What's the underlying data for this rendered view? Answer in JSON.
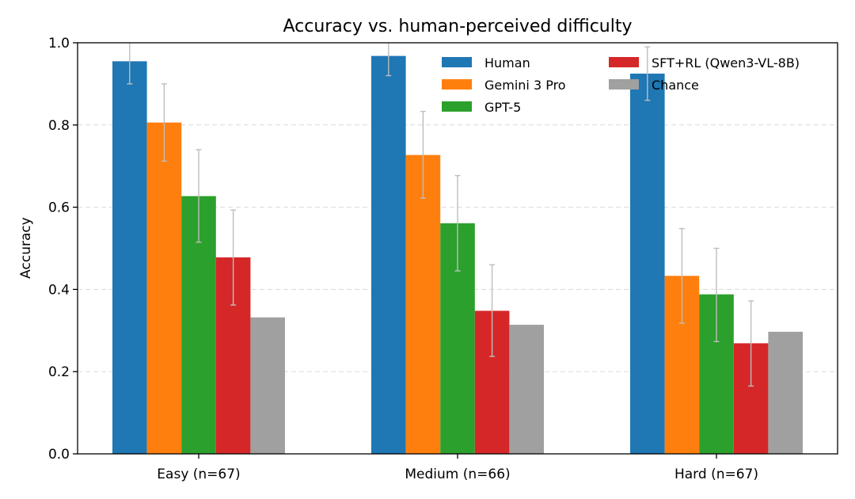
{
  "chart_data": {
    "type": "bar",
    "title": "Accuracy vs. human-perceived difficulty",
    "xlabel": "",
    "ylabel": "Accuracy",
    "categories": [
      "Easy (n=67)",
      "Medium (n=66)",
      "Hard (n=67)"
    ],
    "ylim": [
      0,
      1.0
    ],
    "yticks": [
      0.0,
      0.2,
      0.4,
      0.6,
      0.8,
      1.0
    ],
    "ytick_labels": [
      "0.0",
      "0.2",
      "0.4",
      "0.6",
      "0.8",
      "1.0"
    ],
    "grid": "y-dashed",
    "legend_position": "top-right",
    "legend_columns": 2,
    "series": [
      {
        "name": "Human",
        "color": "#1f77b4",
        "values": [
          0.955,
          0.968,
          0.925
        ],
        "err_low": [
          0.9,
          0.92,
          0.86
        ],
        "err_high": [
          1.01,
          1.016,
          0.99
        ]
      },
      {
        "name": "Gemini 3 Pro",
        "color": "#ff7f0e",
        "values": [
          0.806,
          0.727,
          0.433
        ],
        "err_low": [
          0.712,
          0.622,
          0.318
        ],
        "err_high": [
          0.9,
          0.833,
          0.548
        ]
      },
      {
        "name": "GPT-5",
        "color": "#2ca02c",
        "values": [
          0.627,
          0.561,
          0.388
        ],
        "err_low": [
          0.515,
          0.445,
          0.273
        ],
        "err_high": [
          0.74,
          0.677,
          0.5
        ]
      },
      {
        "name": "SFT+RL (Qwen3-VL-8B)",
        "color": "#d62728",
        "values": [
          0.478,
          0.348,
          0.269
        ],
        "err_low": [
          0.362,
          0.237,
          0.165
        ],
        "err_high": [
          0.593,
          0.46,
          0.372
        ]
      },
      {
        "name": "Chance",
        "color": "#a0a0a0",
        "values": [
          0.332,
          0.314,
          0.297
        ],
        "err_low": null,
        "err_high": null
      }
    ]
  }
}
